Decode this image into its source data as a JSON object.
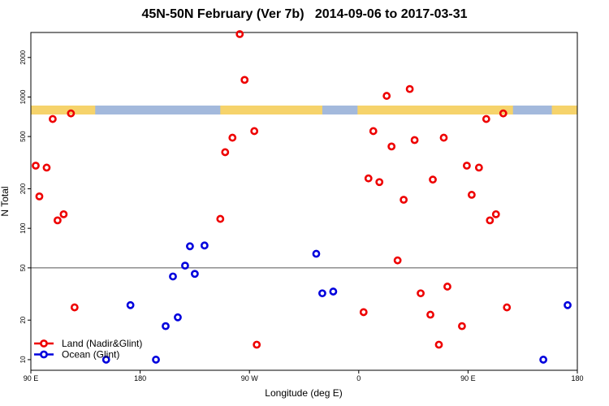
{
  "chart_data": {
    "type": "scatter",
    "title": "45N-50N February (Ver 7b)   2014-09-06 to 2017-03-31",
    "xlabel": "Longitude (deg E)",
    "ylabel": "N Total",
    "x_ticks": [
      {
        "value": 90,
        "label": "90 E"
      },
      {
        "value": 180,
        "label": "180"
      },
      {
        "value": 270,
        "label": "90 W"
      },
      {
        "value": 360,
        "label": "0"
      },
      {
        "value": 450,
        "label": "90 E"
      },
      {
        "value": 540,
        "label": "180"
      }
    ],
    "xlim": [
      90,
      540
    ],
    "y_scale": "log",
    "ylim": [
      8.3,
      3100
    ],
    "y_ticks": [
      10,
      20,
      50,
      100,
      200,
      500,
      1000,
      2000
    ],
    "reference_line": 50,
    "land_strip_colors": {
      "land": "#f6d36b",
      "ocean": "#a3b9dc"
    },
    "series": [
      {
        "name": "Land (Nadir&Glint)",
        "color": "#ee0000",
        "points": [
          [
            94,
            300
          ],
          [
            97,
            175
          ],
          [
            103,
            290
          ],
          [
            108,
            680
          ],
          [
            112,
            115
          ],
          [
            117,
            128
          ],
          [
            123,
            750
          ],
          [
            126,
            25
          ],
          [
            246,
            118
          ],
          [
            250,
            380
          ],
          [
            256,
            490
          ],
          [
            262,
            3200
          ],
          [
            266,
            1350
          ],
          [
            274,
            550
          ],
          [
            276,
            13
          ],
          [
            364,
            23
          ],
          [
            368,
            240
          ],
          [
            372,
            550
          ],
          [
            377,
            225
          ],
          [
            383,
            1020
          ],
          [
            387,
            420
          ],
          [
            392,
            57
          ],
          [
            397,
            165
          ],
          [
            402,
            1150
          ],
          [
            406,
            470
          ],
          [
            411,
            32
          ],
          [
            419,
            22
          ],
          [
            421,
            235
          ],
          [
            426,
            13
          ],
          [
            430,
            490
          ],
          [
            433,
            36
          ],
          [
            445,
            18
          ],
          [
            449,
            300
          ],
          [
            453,
            180
          ],
          [
            459,
            290
          ],
          [
            465,
            680
          ],
          [
            468,
            115
          ],
          [
            473,
            128
          ],
          [
            479,
            750
          ],
          [
            482,
            25
          ]
        ]
      },
      {
        "name": "Ocean (Glint)",
        "color": "#0000dd",
        "points": [
          [
            152,
            10
          ],
          [
            172,
            26
          ],
          [
            193,
            10
          ],
          [
            201,
            18
          ],
          [
            207,
            43
          ],
          [
            211,
            21
          ],
          [
            217,
            52
          ],
          [
            221,
            73
          ],
          [
            225,
            45
          ],
          [
            233,
            74
          ],
          [
            325,
            64
          ],
          [
            330,
            32
          ],
          [
            339,
            33
          ],
          [
            512,
            10
          ],
          [
            532,
            26
          ]
        ]
      }
    ]
  }
}
